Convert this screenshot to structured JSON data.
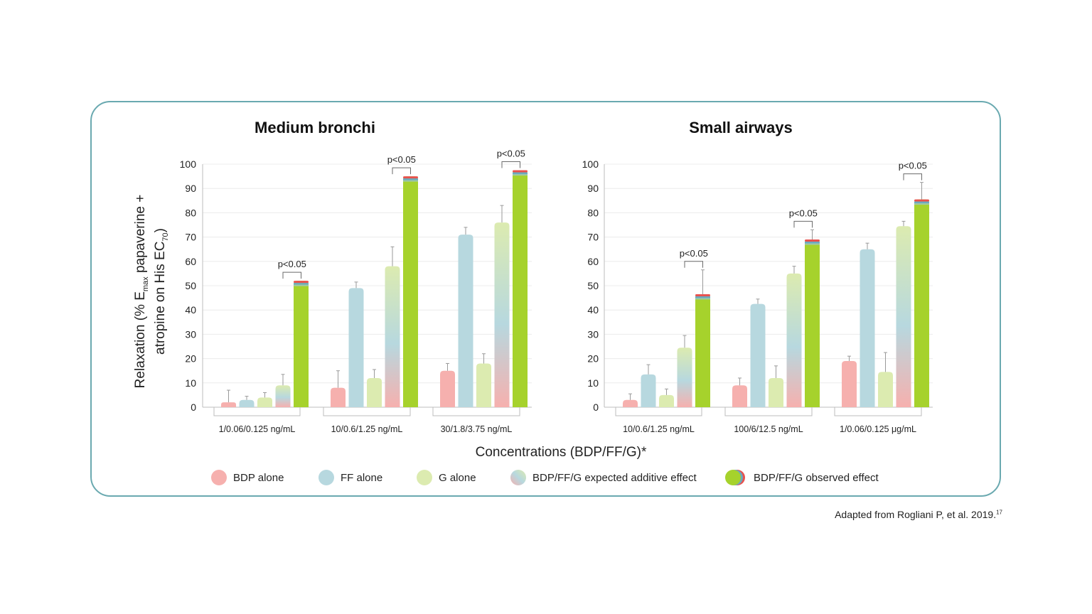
{
  "colors": {
    "bdp": "#f6b0ae",
    "ff": "#b7d8df",
    "g": "#dcebb0",
    "observed": "#a6d22c",
    "red": "#e8524f",
    "blue": "#6aa9c0",
    "frame": "#6aa9b0"
  },
  "x_axis_label": "Concentrations (BDP/FF/G)*",
  "y_axis_label": {
    "line1_pre": "Relaxation (% E",
    "line1_sub": "max",
    "line1_post": " papaverine +",
    "line2_pre": "atropine on His EC",
    "line2_sub": "70",
    "line2_post": ")"
  },
  "source": {
    "text": "Adapted from Rogliani P, et al. 2019.",
    "sup": "17"
  },
  "legend": [
    {
      "label": "BDP alone",
      "icon": "circle-pink"
    },
    {
      "label": "FF alone",
      "icon": "circle-blue"
    },
    {
      "label": "G alone",
      "icon": "circle-green-light"
    },
    {
      "label": "BDP/FF/G expected additive effect",
      "icon": "circle-gradient"
    },
    {
      "label": "BDP/FF/G observed effect",
      "icon": "circle-observed"
    }
  ],
  "chart_data": [
    {
      "type": "bar",
      "title": "Medium bronchi",
      "ylim": [
        0,
        100
      ],
      "yticks": [
        "0",
        "10",
        "20",
        "30",
        "40",
        "50",
        "60",
        "70",
        "80",
        "90",
        "100"
      ],
      "categories": [
        "1/0.06/0.125 ng/mL",
        "10/0.6/1.25 ng/mL",
        "30/1.8/3.75 ng/mL"
      ],
      "series": [
        {
          "name": "BDP alone",
          "values": [
            2,
            8,
            15
          ],
          "errors": [
            5,
            7,
            3
          ]
        },
        {
          "name": "FF alone",
          "values": [
            3,
            49,
            71
          ],
          "errors": [
            1.5,
            2.5,
            3
          ]
        },
        {
          "name": "G alone",
          "values": [
            4,
            12,
            18
          ],
          "errors": [
            2,
            3.5,
            4
          ]
        },
        {
          "name": "BDP/FF/G expected additive effect",
          "values": [
            9,
            58,
            76
          ],
          "errors": [
            4.5,
            8,
            7
          ]
        },
        {
          "name": "BDP/FF/G observed effect",
          "values": [
            52,
            95,
            97.5
          ],
          "errors": [
            0,
            0,
            0
          ]
        }
      ],
      "annotations": [
        "p<0.05",
        "p<0.05",
        "p<0.05"
      ]
    },
    {
      "type": "bar",
      "title": "Small airways",
      "ylim": [
        0,
        100
      ],
      "yticks": [
        "0",
        "10",
        "20",
        "30",
        "40",
        "50",
        "60",
        "70",
        "80",
        "90",
        "100"
      ],
      "categories": [
        "10/0.6/1.25 ng/mL",
        "100/6/12.5 ng/mL",
        "1/0.06/0.125 μg/mL"
      ],
      "series": [
        {
          "name": "BDP alone",
          "values": [
            3,
            9,
            19
          ],
          "errors": [
            2.5,
            3,
            2
          ]
        },
        {
          "name": "FF alone",
          "values": [
            13.5,
            42.5,
            65
          ],
          "errors": [
            4,
            2,
            2.5
          ]
        },
        {
          "name": "G alone",
          "values": [
            5,
            12,
            14.5
          ],
          "errors": [
            2.5,
            5,
            8
          ]
        },
        {
          "name": "BDP/FF/G expected additive effect",
          "values": [
            24.5,
            55,
            74.5
          ],
          "errors": [
            5,
            3,
            2
          ]
        },
        {
          "name": "BDP/FF/G observed effect",
          "values": [
            46.5,
            69,
            85.5
          ],
          "errors": [
            10,
            4,
            7
          ]
        }
      ],
      "annotations": [
        "p<0.05",
        "p<0.05",
        "p<0.05"
      ]
    }
  ]
}
